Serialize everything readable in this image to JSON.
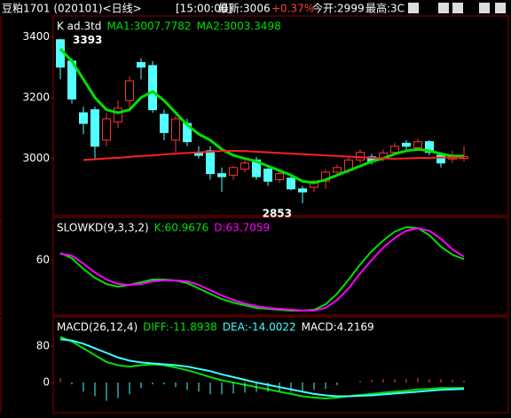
{
  "header": {
    "title": "豆粕1701 (020101)<日线>",
    "time": "[15:00:00]",
    "latest": "最新:3006",
    "change": "+0.37%",
    "open": "今开:2999",
    "high": "最高:3C"
  },
  "chart_data": [
    {
      "type": "candlestick",
      "title": "K  ad.3td",
      "open": [
        3390,
        3320,
        3150,
        3160,
        3060,
        3120,
        3190,
        3315,
        3305,
        3145,
        3060,
        3115,
        3020,
        3025,
        2950,
        2945,
        2965,
        2995,
        2965,
        2930,
        2935,
        2900,
        2905,
        2925,
        2955,
        2960,
        2995,
        3005,
        3000,
        3020,
        3050,
        3035,
        3055,
        3010,
        2998,
        3000
      ],
      "high": [
        3393,
        3330,
        3170,
        3170,
        3150,
        3190,
        3270,
        3330,
        3320,
        3160,
        3140,
        3130,
        3040,
        3040,
        2970,
        2975,
        2995,
        3005,
        2980,
        2960,
        2950,
        2910,
        2930,
        2965,
        2980,
        3005,
        3030,
        3015,
        3030,
        3050,
        3060,
        3065,
        3060,
        3020,
        3025,
        3040
      ],
      "low": [
        3260,
        3180,
        3080,
        3000,
        3040,
        3100,
        3160,
        3260,
        3150,
        3060,
        3020,
        3040,
        3000,
        2930,
        2890,
        2930,
        2955,
        2930,
        2910,
        2920,
        2895,
        2853,
        2890,
        2900,
        2940,
        2950,
        2985,
        2980,
        2990,
        3010,
        3030,
        3025,
        3010,
        2970,
        2985,
        2990
      ],
      "close": [
        3300,
        3195,
        3115,
        3040,
        3130,
        3165,
        3255,
        3300,
        3160,
        3085,
        3130,
        3055,
        3010,
        2950,
        2940,
        2970,
        2985,
        2940,
        2925,
        2950,
        2900,
        2890,
        2925,
        2955,
        2970,
        2995,
        3020,
        2990,
        3018,
        3040,
        3040,
        3055,
        3020,
        2985,
        3010,
        3006
      ],
      "up_color": "#ff3232",
      "down_color": "#54ffff",
      "series": [
        {
          "name": "MA1:3007.7782",
          "color": "#00e000",
          "width": 3,
          "values": [
            3360,
            3320,
            3260,
            3200,
            3160,
            3150,
            3160,
            3200,
            3220,
            3190,
            3150,
            3110,
            3080,
            3060,
            3030,
            3010,
            3000,
            2990,
            2975,
            2960,
            2945,
            2925,
            2920,
            2930,
            2945,
            2960,
            2975,
            2990,
            3000,
            3015,
            3025,
            3030,
            3025,
            3015,
            3008,
            3007.7782
          ]
        },
        {
          "name": "MA2:3003.3498",
          "color": "#ff2020",
          "width": 2,
          "values": [
            null,
            null,
            2995,
            2997,
            3000,
            3002,
            3005,
            3008,
            3010,
            3013,
            3016,
            3018,
            3020,
            3022,
            3025,
            3025,
            3024,
            3022,
            3020,
            3018,
            3016,
            3014,
            3012,
            3010,
            3008,
            3006,
            3004,
            3002,
            3000,
            2999,
            3000,
            3001,
            3002,
            3003,
            3003,
            3003.3498
          ]
        }
      ],
      "legend_color": "#00e000",
      "ylim": [
        2812,
        3468
      ],
      "yticks": [
        3000,
        3200,
        3400
      ]
    },
    {
      "type": "line",
      "title": "SLOWKD(9,3,3,2)",
      "series": [
        {
          "name": "K:60.9676",
          "color": "#00e000",
          "width": 2,
          "values": [
            68,
            62,
            50,
            40,
            33,
            30,
            32,
            35,
            38,
            38,
            37,
            34,
            28,
            22,
            16,
            12,
            9,
            6,
            5,
            4,
            3,
            3,
            4,
            10,
            22,
            38,
            55,
            70,
            82,
            92,
            97,
            96,
            88,
            75,
            66,
            60.9676
          ]
        },
        {
          "name": "D:63.7059",
          "color": "#ff00ff",
          "width": 2,
          "values": [
            67,
            65,
            56,
            46,
            38,
            33,
            32,
            33,
            36,
            37,
            37,
            36,
            32,
            26,
            20,
            15,
            11,
            8,
            6,
            5,
            4,
            3,
            3,
            6,
            15,
            28,
            45,
            60,
            74,
            85,
            93,
            96,
            93,
            84,
            72,
            63.7059
          ]
        }
      ],
      "ylim": [
        -2,
        108
      ],
      "yticks": [
        60
      ]
    },
    {
      "type": "combo",
      "title": "MACD(26,12,4)",
      "series": [
        {
          "name": "DIFF:-11.8938",
          "color": "#00e000",
          "kind": "line",
          "values": [
            100,
            90,
            75,
            60,
            45,
            38,
            35,
            38,
            40,
            38,
            33,
            27,
            20,
            12,
            5,
            0,
            -5,
            -10,
            -15,
            -20,
            -25,
            -30,
            -33,
            -35,
            -33,
            -30,
            -27,
            -25,
            -22,
            -20,
            -18,
            -15,
            -14,
            -12,
            -12,
            -11.8938
          ]
        },
        {
          "name": "DEA:-14.0022",
          "color": "#40ffff",
          "kind": "line",
          "values": [
            95,
            92,
            85,
            75,
            65,
            55,
            48,
            44,
            42,
            40,
            38,
            35,
            30,
            25,
            18,
            12,
            6,
            0,
            -5,
            -10,
            -15,
            -20,
            -25,
            -28,
            -30,
            -30,
            -29,
            -28,
            -26,
            -24,
            -22,
            -20,
            -18,
            -16,
            -15,
            -14.0022
          ]
        },
        {
          "name": "MACD:4.2169",
          "color": "#ffffff",
          "kind": "bar",
          "up_color": "#ff4040",
          "down_color": "#40ffff",
          "values": [
            10,
            -4,
            -20,
            -30,
            -40,
            -34,
            -26,
            -12,
            -4,
            -4,
            -10,
            -16,
            -20,
            -26,
            -26,
            -24,
            -22,
            -20,
            -20,
            -20,
            -20,
            -20,
            -16,
            -14,
            -6,
            0,
            4,
            6,
            8,
            8,
            8,
            10,
            8,
            8,
            6,
            4.2169
          ]
        }
      ],
      "ylim": [
        -66,
        144
      ],
      "yticks": [
        80,
        0
      ]
    }
  ]
}
